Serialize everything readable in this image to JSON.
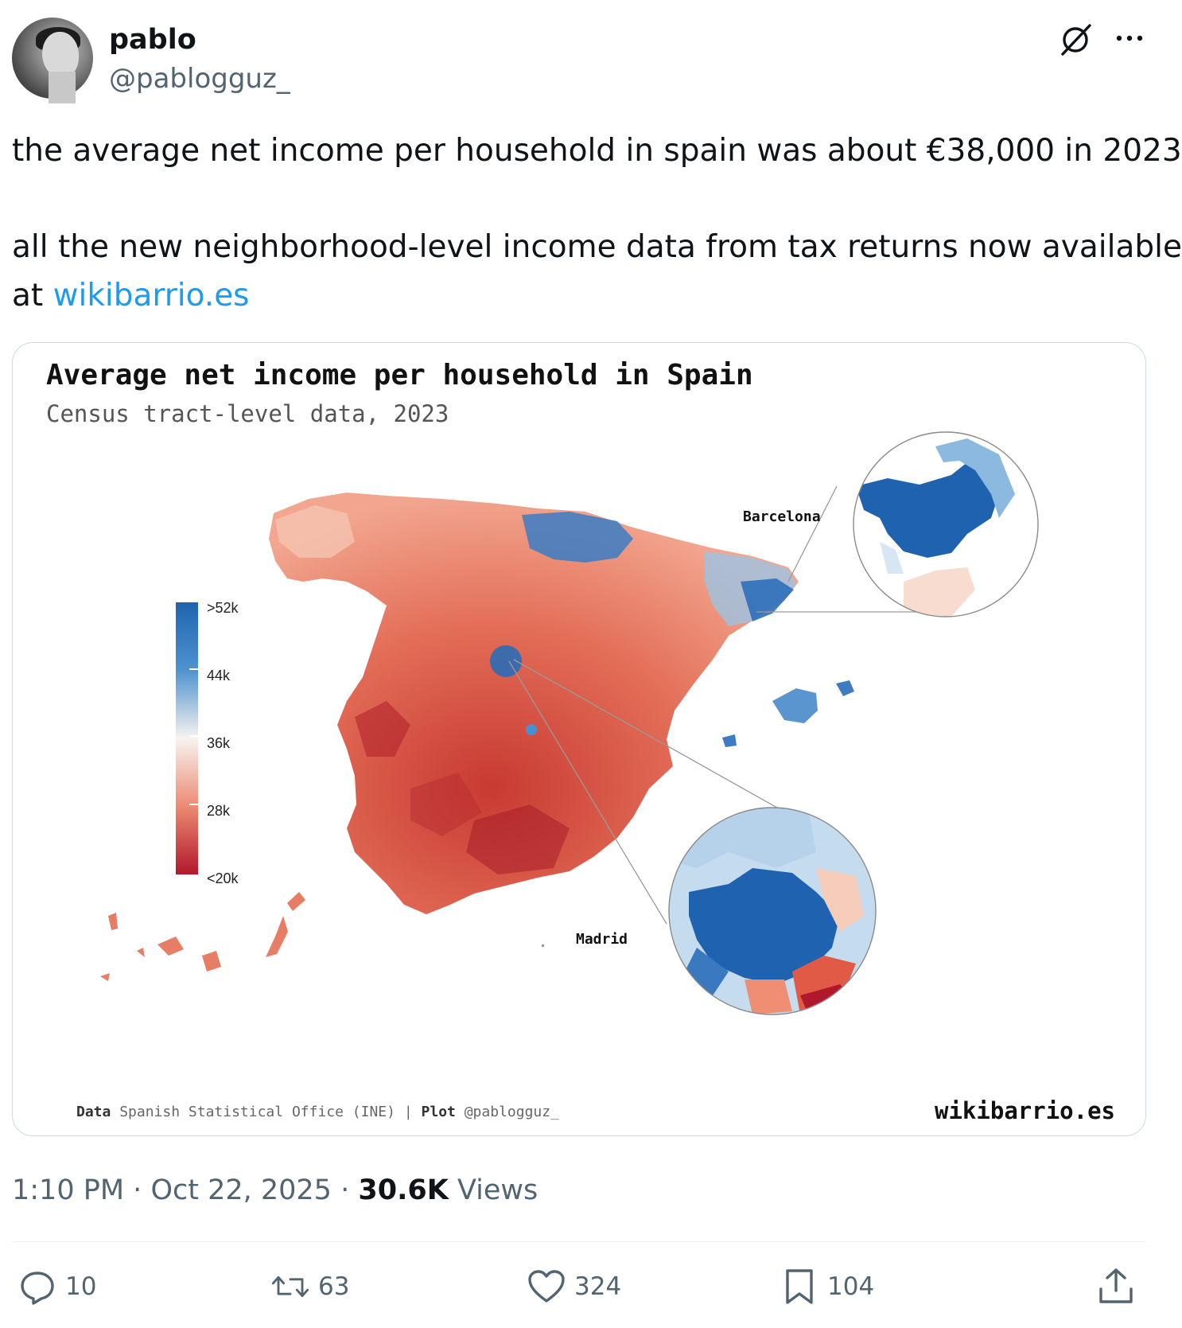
{
  "author": {
    "name": "pablo",
    "handle": "@pablogguz_"
  },
  "icons": {
    "grok": "grok-icon",
    "more": "more-icon",
    "reply": "reply-icon",
    "retweet": "retweet-icon",
    "like": "heart-icon",
    "bookmark": "bookmark-icon",
    "share": "share-icon"
  },
  "tweet": {
    "line1": "the average net income per household in spain was about €38,000 in 2023",
    "line2": "all the new neighborhood-level income data from tax returns now available",
    "line3_prefix": "at ",
    "link": "wikibarrio.es"
  },
  "card": {
    "title": "Average net income per household in Spain",
    "subtitle": "Census tract-level data, 2023",
    "legend_labels": [
      ">52k",
      "44k",
      "36k",
      "28k",
      "<20k"
    ],
    "inset_barcelona": "Barcelona",
    "inset_madrid": "Madrid",
    "footer": {
      "data_label": "Data",
      "data_source": "Spanish Statistical Office (INE)",
      "separator": "|",
      "plot_label": "Plot",
      "plot_author": "@pablogguz_",
      "site": "wikibarrio.es"
    },
    "colors": {
      "high": "#1f63b0",
      "mid": "#f7f3f0",
      "low": "#b2182b"
    }
  },
  "meta": {
    "time": "1:10 PM",
    "date": "Oct 22, 2025",
    "views_count": "30.6K",
    "views_label": "Views",
    "dot": "·"
  },
  "actions": {
    "replies": "10",
    "retweets": "63",
    "likes": "324",
    "bookmarks": "104"
  }
}
